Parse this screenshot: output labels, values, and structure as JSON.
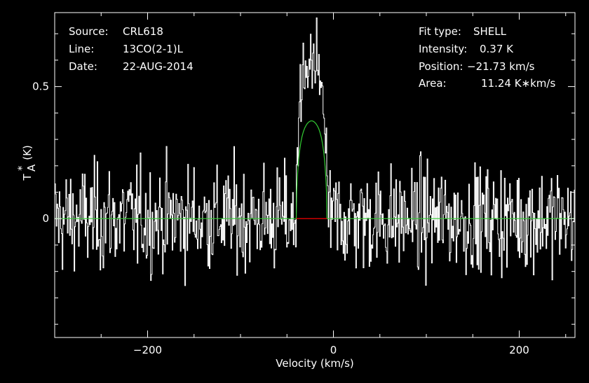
{
  "header_left": {
    "source_label": "Source:",
    "source_value": "CRL618",
    "line_label": "Line:",
    "line_value": "13CO(2-1)L",
    "date_label": "Date:",
    "date_value": "22-AUG-2014"
  },
  "header_right": {
    "fit_type_label": "Fit type:",
    "fit_type_value": "SHELL",
    "intensity_label": "Intensity:",
    "intensity_value": "0.37 K",
    "position_label": "Position:",
    "position_value": "−21.73 km/s",
    "area_label": "Area:",
    "area_value": "11.24 K∗km/s"
  },
  "chart_data": {
    "type": "line",
    "xlabel": "Velocity (km/s)",
    "ylabel_main": "T",
    "ylabel_sup": "*",
    "ylabel_sub": "A",
    "ylabel_unit": "(K)",
    "xlim": [
      -300,
      260
    ],
    "ylim": [
      -0.45,
      0.78
    ],
    "x_ticks": [
      {
        "value": -200,
        "label": "−200"
      },
      {
        "value": 0,
        "label": "0"
      },
      {
        "value": 200,
        "label": "200"
      }
    ],
    "y_ticks": [
      {
        "value": 0,
        "label": "0"
      },
      {
        "value": 0.5,
        "label": "0.5"
      }
    ],
    "grid": false,
    "series": [
      {
        "kind": "spectrum",
        "color": "#ffffff",
        "noise_rms": 0.11,
        "line_range": [
          -40,
          -7
        ],
        "line_peak": 0.6
      },
      {
        "kind": "shell_fit",
        "color": "#33cc33",
        "center": -21.73,
        "peak": 0.37,
        "area": 11.24,
        "range": [
          -40,
          -7
        ]
      },
      {
        "kind": "fit_window_baseline",
        "color": "#cc0000",
        "range": [
          -40,
          -7
        ],
        "value": 0
      }
    ]
  },
  "colors": {
    "background": "#000000",
    "frame": "#ffffff",
    "spectrum": "#ffffff",
    "fit": "#33cc33",
    "fit_window": "#cc0000"
  }
}
